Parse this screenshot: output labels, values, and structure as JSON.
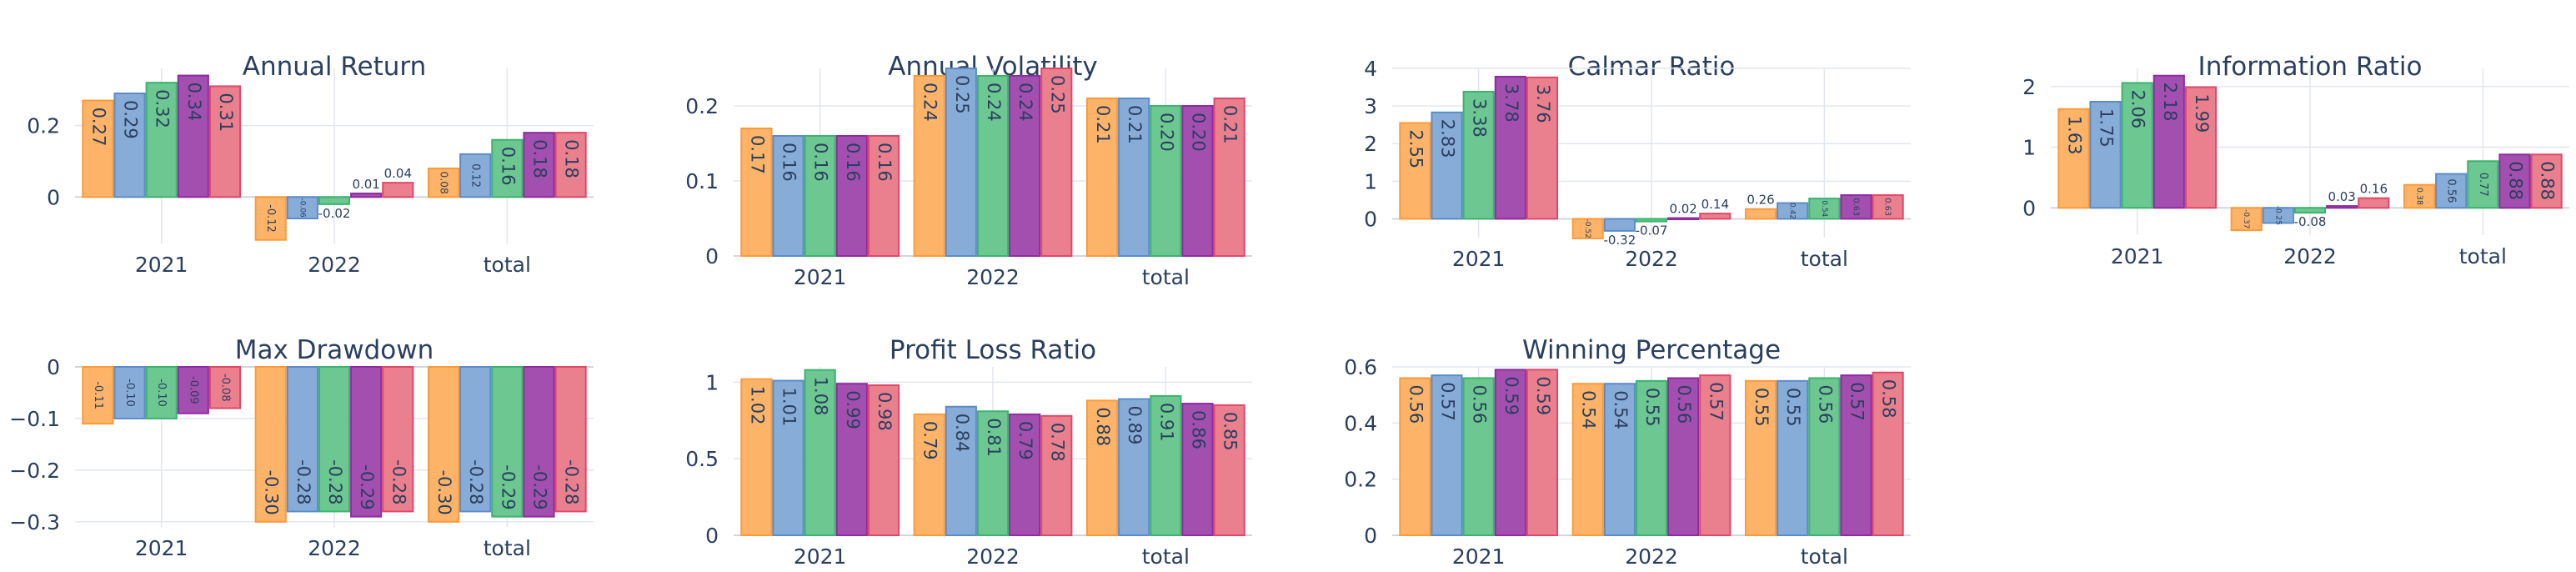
{
  "colors": [
    "#fdb469",
    "#88acd8",
    "#6cc791",
    "#a34fb0",
    "#ea7f8e"
  ],
  "border_colors": [
    "#fd9a38",
    "#5b8cc9",
    "#3cb36e",
    "#8e2ca0",
    "#e1476a"
  ],
  "chart_data": [
    {
      "type": "bar",
      "title": "Annual Return",
      "categories": [
        "2021",
        "2022",
        "total"
      ],
      "ylim": [
        -0.13,
        0.36
      ],
      "yticks": [
        0,
        0.2
      ],
      "ytick_labels": [
        "0",
        "0.2"
      ],
      "series": [
        {
          "values": [
            0.27,
            -0.12,
            0.08
          ]
        },
        {
          "values": [
            0.29,
            -0.06,
            0.12
          ]
        },
        {
          "values": [
            0.32,
            -0.02,
            0.16
          ]
        },
        {
          "values": [
            0.34,
            0.01,
            0.18
          ]
        },
        {
          "values": [
            0.31,
            0.04,
            0.18
          ]
        }
      ]
    },
    {
      "type": "bar",
      "title": "Annual Volatility",
      "categories": [
        "2021",
        "2022",
        "total"
      ],
      "ylim": [
        0,
        0.25
      ],
      "yticks": [
        0,
        0.1,
        0.2
      ],
      "ytick_labels": [
        "0",
        "0.1",
        "0.2"
      ],
      "series": [
        {
          "values": [
            0.17,
            0.24,
            0.21
          ]
        },
        {
          "values": [
            0.16,
            0.25,
            0.21
          ]
        },
        {
          "values": [
            0.16,
            0.24,
            0.2
          ]
        },
        {
          "values": [
            0.16,
            0.24,
            0.2
          ]
        },
        {
          "values": [
            0.16,
            0.25,
            0.21
          ]
        }
      ]
    },
    {
      "type": "bar",
      "title": "Calmar Ratio",
      "categories": [
        "2021",
        "2022",
        "total"
      ],
      "ylim": [
        -0.5,
        4.0
      ],
      "yticks": [
        0,
        1,
        2,
        3,
        4
      ],
      "ytick_labels": [
        "0",
        "1",
        "2",
        "3",
        "4"
      ],
      "series": [
        {
          "values": [
            2.55,
            -0.52,
            0.26
          ]
        },
        {
          "values": [
            2.83,
            -0.32,
            0.42
          ]
        },
        {
          "values": [
            3.38,
            -0.07,
            0.54
          ]
        },
        {
          "values": [
            3.78,
            0.02,
            0.63
          ]
        },
        {
          "values": [
            3.76,
            0.14,
            0.63
          ]
        }
      ]
    },
    {
      "type": "bar",
      "title": "Information Ratio",
      "categories": [
        "2021",
        "2022",
        "total"
      ],
      "ylim": [
        -0.45,
        2.3
      ],
      "yticks": [
        0,
        1,
        2
      ],
      "ytick_labels": [
        "0",
        "1",
        "2"
      ],
      "series": [
        {
          "values": [
            1.63,
            -0.37,
            0.38
          ]
        },
        {
          "values": [
            1.75,
            -0.25,
            0.56
          ]
        },
        {
          "values": [
            2.06,
            -0.08,
            0.77
          ]
        },
        {
          "values": [
            2.18,
            0.03,
            0.88
          ]
        },
        {
          "values": [
            1.99,
            0.16,
            0.88
          ]
        }
      ]
    },
    {
      "type": "bar",
      "title": "Max Drawdown",
      "categories": [
        "2021",
        "2022",
        "total"
      ],
      "ylim": [
        -0.31,
        0.0
      ],
      "yticks": [
        0,
        -0.1,
        -0.2,
        -0.3
      ],
      "ytick_labels": [
        "0",
        "−0.1",
        "−0.2",
        "−0.3"
      ],
      "series": [
        {
          "values": [
            -0.11,
            -0.3,
            -0.3
          ]
        },
        {
          "values": [
            -0.1,
            -0.28,
            -0.28
          ]
        },
        {
          "values": [
            -0.1,
            -0.28,
            -0.29
          ]
        },
        {
          "values": [
            -0.09,
            -0.29,
            -0.29
          ]
        },
        {
          "values": [
            -0.08,
            -0.28,
            -0.28
          ]
        }
      ]
    },
    {
      "type": "bar",
      "title": "Profit Loss Ratio",
      "categories": [
        "2021",
        "2022",
        "total"
      ],
      "ylim": [
        0,
        1.1
      ],
      "yticks": [
        0,
        0.5,
        1
      ],
      "ytick_labels": [
        "0",
        "0.5",
        "1"
      ],
      "series": [
        {
          "values": [
            1.02,
            0.79,
            0.88
          ]
        },
        {
          "values": [
            1.01,
            0.84,
            0.89
          ]
        },
        {
          "values": [
            1.08,
            0.81,
            0.91
          ]
        },
        {
          "values": [
            0.99,
            0.79,
            0.86
          ]
        },
        {
          "values": [
            0.98,
            0.78,
            0.85
          ]
        }
      ]
    },
    {
      "type": "bar",
      "title": "Winning Percentage",
      "categories": [
        "2021",
        "2022",
        "total"
      ],
      "ylim": [
        0,
        0.6
      ],
      "yticks": [
        0,
        0.2,
        0.4,
        0.6
      ],
      "ytick_labels": [
        "0",
        "0.2",
        "0.4",
        "0.6"
      ],
      "series": [
        {
          "values": [
            0.56,
            0.54,
            0.55
          ]
        },
        {
          "values": [
            0.57,
            0.54,
            0.55
          ]
        },
        {
          "values": [
            0.56,
            0.55,
            0.56
          ]
        },
        {
          "values": [
            0.59,
            0.56,
            0.57
          ]
        },
        {
          "values": [
            0.59,
            0.57,
            0.58
          ]
        }
      ]
    }
  ]
}
